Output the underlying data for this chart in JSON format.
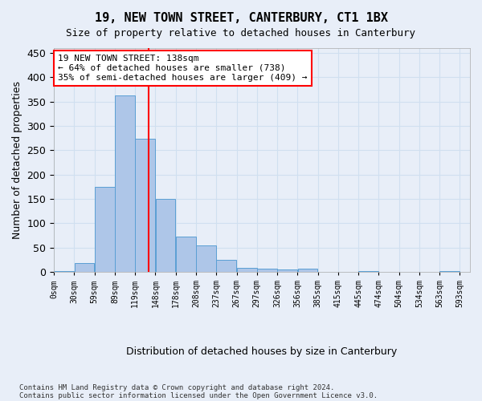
{
  "title": "19, NEW TOWN STREET, CANTERBURY, CT1 1BX",
  "subtitle": "Size of property relative to detached houses in Canterbury",
  "xlabel": "Distribution of detached houses by size in Canterbury",
  "ylabel": "Number of detached properties",
  "footer_line1": "Contains HM Land Registry data © Crown copyright and database right 2024.",
  "footer_line2": "Contains public sector information licensed under the Open Government Licence v3.0.",
  "bin_labels": [
    "0sqm",
    "30sqm",
    "59sqm",
    "89sqm",
    "119sqm",
    "148sqm",
    "178sqm",
    "208sqm",
    "237sqm",
    "267sqm",
    "297sqm",
    "326sqm",
    "356sqm",
    "385sqm",
    "415sqm",
    "445sqm",
    "474sqm",
    "504sqm",
    "534sqm",
    "563sqm",
    "593sqm"
  ],
  "bar_heights": [
    2,
    18,
    175,
    362,
    273,
    150,
    72,
    54,
    25,
    8,
    6,
    5,
    7,
    0,
    0,
    2,
    0,
    0,
    0,
    2
  ],
  "bar_color": "#aec6e8",
  "bar_edge_color": "#5a9fd4",
  "grid_color": "#d0dff0",
  "vline_color": "red",
  "annotation_line1": "19 NEW TOWN STREET: 138sqm",
  "annotation_line2": "← 64% of detached houses are smaller (738)",
  "annotation_line3": "35% of semi-detached houses are larger (409) →",
  "annotation_box_color": "white",
  "annotation_box_edge": "red",
  "ylim": [
    0,
    460
  ],
  "bin_width": 29.5,
  "vline_sqm": 138,
  "background_color": "#e8eef8"
}
